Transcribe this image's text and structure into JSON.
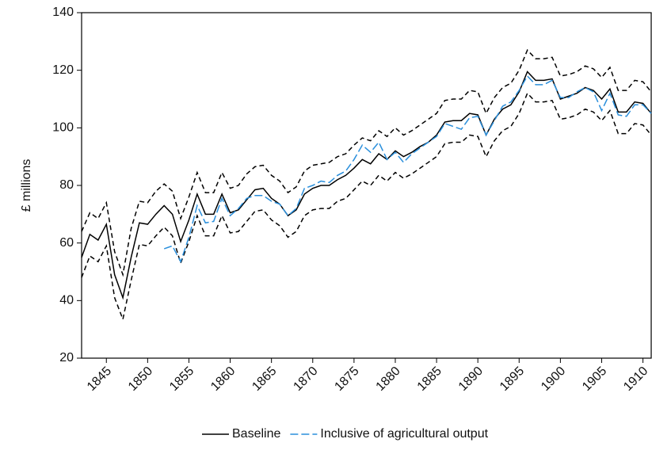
{
  "chart_data": {
    "type": "line",
    "y_label": "£ millions",
    "x": [
      1842,
      1843,
      1844,
      1845,
      1846,
      1847,
      1848,
      1849,
      1850,
      1851,
      1852,
      1853,
      1854,
      1855,
      1856,
      1857,
      1858,
      1859,
      1860,
      1861,
      1862,
      1863,
      1864,
      1865,
      1866,
      1867,
      1868,
      1869,
      1870,
      1871,
      1872,
      1873,
      1874,
      1875,
      1876,
      1877,
      1878,
      1879,
      1880,
      1881,
      1882,
      1883,
      1884,
      1885,
      1886,
      1887,
      1888,
      1889,
      1890,
      1891,
      1892,
      1893,
      1894,
      1895,
      1896,
      1897,
      1898,
      1899,
      1900,
      1901,
      1902,
      1903,
      1904,
      1905,
      1906,
      1907,
      1908,
      1909,
      1910,
      1911
    ],
    "xlim": [
      1842,
      1911
    ],
    "xticks": [
      1845,
      1850,
      1855,
      1860,
      1865,
      1870,
      1875,
      1880,
      1885,
      1890,
      1895,
      1900,
      1905,
      1910
    ],
    "ylim": [
      20,
      140
    ],
    "yticks": [
      20,
      40,
      60,
      80,
      100,
      120,
      140
    ],
    "series": [
      {
        "color": "#000000",
        "dash": "6,4",
        "values": [
          64,
          70.5,
          68.5,
          74,
          57,
          49,
          65,
          74.5,
          74,
          78,
          80.5,
          78,
          68.5,
          76,
          84.5,
          77.5,
          77.5,
          84.5,
          79,
          80,
          84,
          86.5,
          87,
          83.5,
          81.5,
          77.5,
          79.5,
          85,
          87,
          87.5,
          88,
          90,
          91,
          94,
          96.5,
          95.5,
          99,
          97,
          100,
          97.5,
          99,
          101,
          103,
          105,
          109.5,
          110,
          110,
          113,
          112.5,
          105,
          110.5,
          114,
          115.5,
          120,
          127,
          124,
          124,
          124.5,
          118,
          118.5,
          119.5,
          121.5,
          120.5,
          117.5,
          121,
          113,
          113,
          116.5,
          116,
          112.5
        ]
      },
      {
        "color": "#000000",
        "dash": "6,4",
        "values": [
          48,
          55.5,
          53.5,
          59,
          41,
          33.5,
          47,
          59.5,
          59,
          62.5,
          65.5,
          62.5,
          53,
          60.5,
          69.5,
          62.5,
          62.5,
          69.5,
          63.5,
          64,
          67.5,
          71,
          71.5,
          68,
          66,
          62,
          64,
          69.5,
          71.5,
          72,
          72,
          74.5,
          75.5,
          78.5,
          81.5,
          80,
          83.5,
          81.5,
          84.5,
          82.5,
          84,
          86,
          88,
          90,
          94.5,
          95,
          95,
          97.5,
          97,
          90,
          95.5,
          99,
          100.5,
          105,
          112,
          109,
          109,
          109.5,
          103,
          103.5,
          104.5,
          106.5,
          105.5,
          102.5,
          106,
          98,
          98,
          101.5,
          101,
          97.5
        ]
      },
      {
        "name": "Baseline",
        "color": "#000000",
        "values": [
          55,
          63,
          61,
          66.5,
          49,
          41,
          55,
          67,
          66.5,
          70,
          73,
          70,
          60.5,
          68,
          77,
          70,
          70,
          77,
          70.5,
          71.5,
          75,
          78.5,
          79,
          75.5,
          73.5,
          69.5,
          71.5,
          77,
          79,
          80,
          80,
          82,
          83.5,
          86,
          89,
          87.5,
          91,
          89,
          92,
          90,
          91.5,
          93.5,
          95,
          97.5,
          102,
          102.5,
          102.5,
          105,
          104.5,
          97.5,
          103,
          106.5,
          108,
          112.5,
          119.5,
          116.5,
          116.5,
          117,
          110,
          111,
          112,
          114,
          113,
          110,
          113.5,
          105.5,
          105.5,
          109,
          108.5,
          105
        ]
      },
      {
        "name": "Inclusive of agricultural output",
        "color": "#2a8fdc",
        "dash": "10,4",
        "values": [
          null,
          null,
          null,
          null,
          null,
          null,
          null,
          null,
          null,
          null,
          58,
          59,
          53.5,
          62,
          73,
          67,
          67.5,
          75.5,
          69.5,
          72,
          75.5,
          76.5,
          76.5,
          74.5,
          73.5,
          69.5,
          72,
          79,
          80,
          81.5,
          81,
          83.5,
          85,
          89,
          94,
          91.5,
          95,
          89,
          91.5,
          88,
          91,
          93,
          95,
          97,
          101.5,
          100.5,
          99.5,
          103.5,
          104,
          97.5,
          102.5,
          107.5,
          109,
          113,
          118,
          115,
          115,
          116.5,
          110.5,
          110.5,
          112.5,
          114,
          112.5,
          106,
          112,
          104.5,
          104,
          108,
          108,
          105
        ]
      }
    ]
  }
}
